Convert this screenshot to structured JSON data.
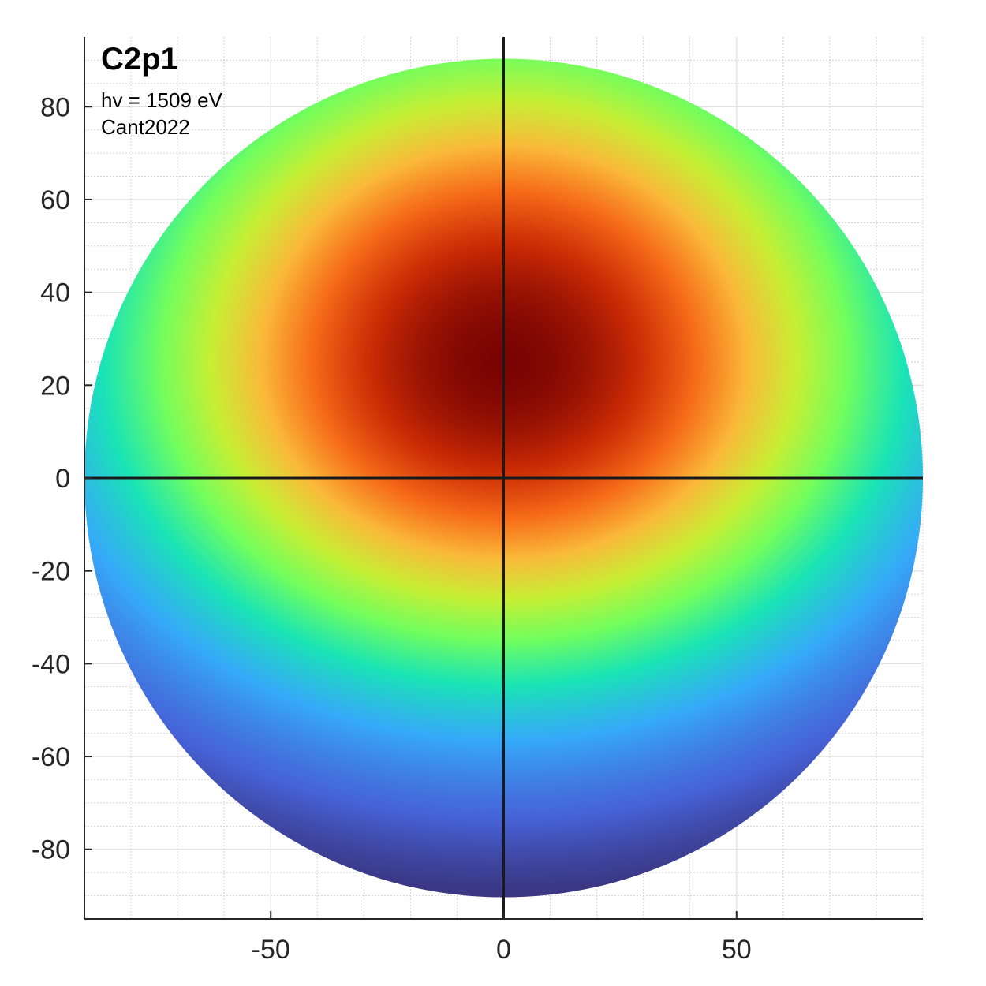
{
  "chart_data": {
    "type": "heatmap",
    "title": "C2p1",
    "subtitle_lines": [
      "hv = 1509 eV",
      "Cant2022"
    ],
    "xlabel": "",
    "ylabel": "",
    "xlim": [
      -90,
      90
    ],
    "ylim": [
      -95,
      95
    ],
    "x_ticks": [
      -50,
      0,
      50
    ],
    "x_tick_labels": [
      "-50",
      "0",
      "50"
    ],
    "y_ticks": [
      80,
      60,
      40,
      20,
      0,
      -20,
      -40,
      -60,
      -80
    ],
    "y_tick_labels": [
      "80",
      "60",
      "40",
      "20",
      "0",
      "-20",
      "-40",
      "-60",
      "-80"
    ],
    "grid": true,
    "minor_grid": true,
    "domain": "disk of radius 90 centered at (0, 0)",
    "colormap": "turbo",
    "colormap_stops": [
      "#30123b",
      "#4662d7",
      "#36aaf9",
      "#1ae4b6",
      "#72fe5e",
      "#c8ef34",
      "#faba39",
      "#f66b19",
      "#ca2a04",
      "#7a0403"
    ],
    "field": {
      "description": "smooth single-peak intensity over the disk",
      "peak": {
        "x": 0,
        "y": 25,
        "value": 1.0
      },
      "levels": [
        {
          "x": 0,
          "y": 80,
          "value": 0.42
        },
        {
          "x": 0,
          "y": 0,
          "value": 0.68
        },
        {
          "x": 0,
          "y": -30,
          "value": 0.38
        },
        {
          "x": 0,
          "y": -60,
          "value": 0.12
        },
        {
          "x": 0,
          "y": -88,
          "value": 0.0
        },
        {
          "x": 85,
          "y": 25,
          "value": 0.33
        },
        {
          "x": -85,
          "y": 25,
          "value": 0.33
        }
      ]
    },
    "crosshair": {
      "x": 0,
      "y": 0,
      "color": "#1a1a1a"
    }
  }
}
